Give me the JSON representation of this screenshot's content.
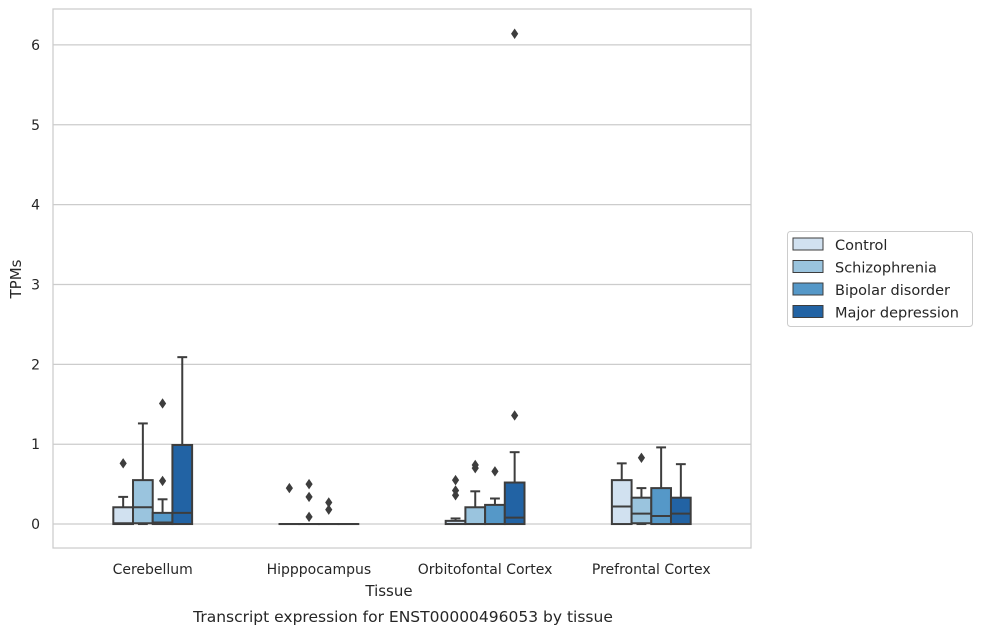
{
  "chart_data": {
    "type": "box",
    "caption": "Transcript expression for ENST00000496053 by tissue",
    "xlabel": "Tissue",
    "ylabel": "TPMs",
    "ylim": [
      -0.3,
      6.45
    ],
    "yticks": [
      0,
      1,
      2,
      3,
      4,
      5,
      6
    ],
    "grid": "horizontal",
    "legend_position": "right",
    "categories": [
      "Cerebellum",
      "Hipppocampus",
      "Orbitofontal Cortex",
      "Prefrontal Cortex"
    ],
    "series": [
      {
        "name": "Control",
        "color": "#d1e1f0",
        "boxes": [
          {
            "whislo": 0,
            "q1": 0,
            "med": 0.01,
            "q3": 0.21,
            "whishi": 0.34,
            "fliers": [
              0.76
            ]
          },
          {
            "whislo": 0,
            "q1": 0,
            "med": 0,
            "q3": 0,
            "whishi": 0,
            "fliers": [
              0.45
            ]
          },
          {
            "whislo": 0,
            "q1": 0,
            "med": 0,
            "q3": 0.04,
            "whishi": 0.07,
            "fliers": [
              0.36,
              0.42,
              0.55
            ]
          },
          {
            "whislo": 0,
            "q1": 0,
            "med": 0.22,
            "q3": 0.55,
            "whishi": 0.76,
            "fliers": []
          }
        ]
      },
      {
        "name": "Schizophrenia",
        "color": "#9ac4de",
        "boxes": [
          {
            "whislo": 0,
            "q1": 0.01,
            "med": 0.21,
            "q3": 0.55,
            "whishi": 1.26,
            "fliers": []
          },
          {
            "whislo": 0,
            "q1": 0,
            "med": 0,
            "q3": 0,
            "whishi": 0,
            "fliers": [
              0.09,
              0.34,
              0.5
            ]
          },
          {
            "whislo": 0,
            "q1": 0,
            "med": 0,
            "q3": 0.21,
            "whishi": 0.41,
            "fliers": [
              0.7,
              0.74
            ]
          },
          {
            "whislo": 0,
            "q1": 0.01,
            "med": 0.13,
            "q3": 0.33,
            "whishi": 0.45,
            "fliers": [
              0.83
            ]
          }
        ]
      },
      {
        "name": "Bipolar disorder",
        "color": "#5598c8",
        "boxes": [
          {
            "whislo": 0,
            "q1": 0,
            "med": 0.02,
            "q3": 0.14,
            "whishi": 0.31,
            "fliers": [
              0.54,
              1.51
            ]
          },
          {
            "whislo": 0,
            "q1": 0,
            "med": 0,
            "q3": 0,
            "whishi": 0,
            "fliers": [
              0.18,
              0.27
            ]
          },
          {
            "whislo": 0,
            "q1": 0,
            "med": 0,
            "q3": 0.24,
            "whishi": 0.32,
            "fliers": [
              0.66
            ]
          },
          {
            "whislo": 0,
            "q1": 0,
            "med": 0.1,
            "q3": 0.45,
            "whishi": 0.96,
            "fliers": []
          }
        ]
      },
      {
        "name": "Major depression",
        "color": "#2263a4",
        "boxes": [
          {
            "whislo": 0,
            "q1": 0,
            "med": 0.14,
            "q3": 0.99,
            "whishi": 2.09,
            "fliers": []
          },
          {
            "whislo": 0,
            "q1": 0,
            "med": 0,
            "q3": 0,
            "whishi": 0,
            "fliers": []
          },
          {
            "whislo": 0,
            "q1": 0,
            "med": 0.08,
            "q3": 0.52,
            "whishi": 0.9,
            "fliers": [
              1.36,
              6.14
            ]
          },
          {
            "whislo": 0,
            "q1": 0,
            "med": 0.13,
            "q3": 0.33,
            "whishi": 0.75,
            "fliers": []
          }
        ]
      }
    ]
  }
}
